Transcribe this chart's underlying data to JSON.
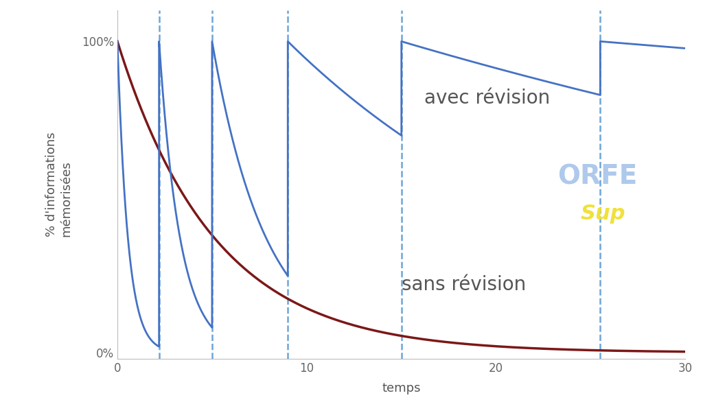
{
  "title": "",
  "xlabel": "temps",
  "ylabel": "% d'informations\nmémorisées",
  "xlim": [
    0,
    30
  ],
  "ylim": [
    -0.02,
    1.1
  ],
  "yticks": [
    0,
    1
  ],
  "ytick_labels": [
    "0%",
    "100%"
  ],
  "xticks": [
    0,
    10,
    20,
    30
  ],
  "background_color": "#ffffff",
  "forget_color": "#7B1818",
  "revision_color": "#4472C4",
  "dashed_color": "#5B9BD5",
  "label_color": "#555555",
  "revision_times": [
    2.2,
    5.0,
    9.0,
    15.0,
    25.5
  ],
  "forget_decay": 0.195,
  "segment_decays": [
    1.8,
    0.9,
    0.35,
    0.06,
    0.018,
    0.005
  ],
  "label_avec": "avec révision",
  "label_sans": "sans révision",
  "label_fontsize": 20,
  "axis_fontsize": 13,
  "tick_fontsize": 12
}
